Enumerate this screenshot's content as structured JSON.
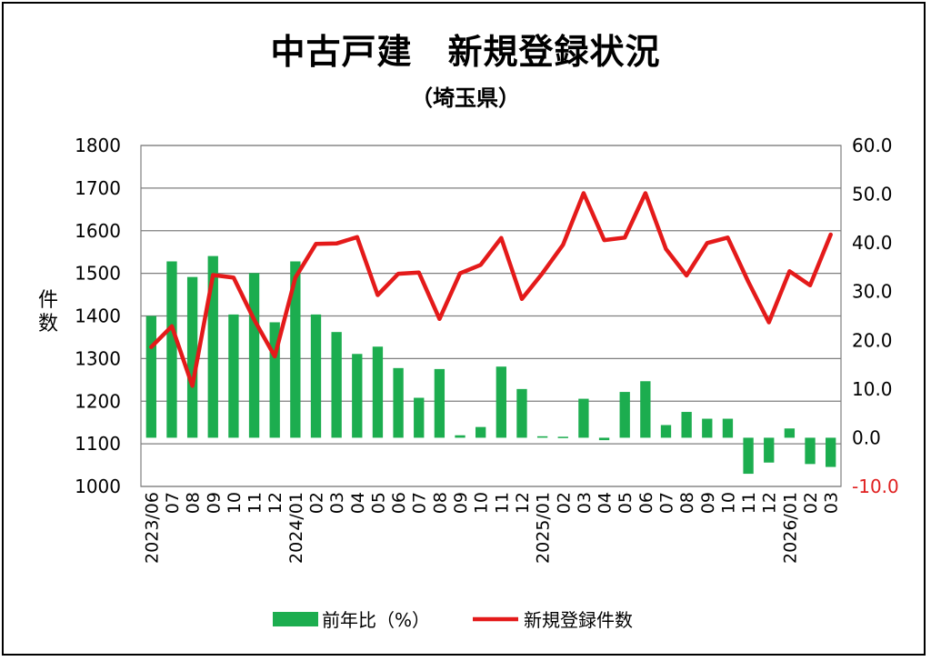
{
  "chart_data": {
    "type": "bar+line",
    "title": "中古戸建　新規登録状況",
    "subtitle": "（埼玉県）",
    "ylabel_left": "件\n数",
    "categories": [
      "2023/06",
      "07",
      "08",
      "09",
      "10",
      "11",
      "12",
      "2024/01",
      "02",
      "03",
      "04",
      "05",
      "06",
      "07",
      "08",
      "09",
      "10",
      "11",
      "12",
      "2025/01",
      "02",
      "03",
      "04",
      "05",
      "06",
      "07",
      "08",
      "09",
      "10",
      "11",
      "12",
      "2026/01",
      "02",
      "03"
    ],
    "y_left": {
      "min": 1000,
      "max": 1800,
      "ticks": [
        "1000",
        "1100",
        "1200",
        "1300",
        "1400",
        "1500",
        "1600",
        "1700",
        "1800"
      ]
    },
    "y_right": {
      "min": -10,
      "max": 60,
      "ticks": [
        "-10.0",
        "0.0",
        "10.0",
        "20.0",
        "30.0",
        "40.0",
        "50.0",
        "60.0"
      ],
      "negative_tick_color": "#e02020"
    },
    "series": [
      {
        "name": "前年比（%）",
        "kind": "bar",
        "axis": "right",
        "color": "#1cad4f",
        "values": [
          25.0,
          36.2,
          33.0,
          37.3,
          25.3,
          33.8,
          23.7,
          36.2,
          25.3,
          21.7,
          17.2,
          18.7,
          14.3,
          8.2,
          14.1,
          0.5,
          2.2,
          14.6,
          10.0,
          0.3,
          0.2,
          8.0,
          -0.5,
          9.4,
          11.6,
          2.6,
          5.3,
          3.9,
          3.9,
          -7.4,
          -5.1,
          1.9,
          -5.4,
          -6.0
        ]
      },
      {
        "name": "新規登録件数",
        "kind": "line",
        "axis": "left",
        "color": "#e41a1a",
        "values": [
          1327,
          1376,
          1236,
          1496,
          1490,
          1391,
          1305,
          1490,
          1569,
          1570,
          1585,
          1449,
          1499,
          1502,
          1393,
          1500,
          1520,
          1583,
          1440,
          1500,
          1567,
          1688,
          1578,
          1584,
          1688,
          1557,
          1495,
          1571,
          1584,
          1480,
          1385,
          1505,
          1472,
          1591
        ]
      }
    ],
    "legend_position": "bottom",
    "grid": true
  }
}
